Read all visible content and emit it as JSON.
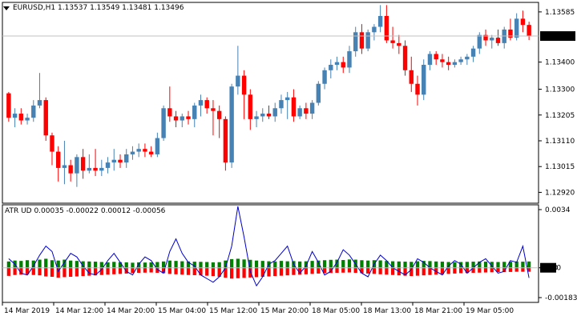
{
  "main_pane": {
    "title": "EURUSD,H1",
    "ohlc": "1.13537 1.13549 1.13481 1.13496",
    "price_ticks": [
      "1.13585",
      "1.13400",
      "1.13300",
      "1.13205",
      "1.13110",
      "1.13015",
      "1.12920"
    ],
    "current_price": "1.13496"
  },
  "indicator_pane": {
    "title": "ATR UD 0.00035 -0.00022 0.00012 -0.00056",
    "ticks": [
      "0.0034",
      "0.00",
      "-0.00183"
    ],
    "zero_tag": "0.00"
  },
  "time_axis": [
    "14 Mar 2019",
    "14 Mar 12:00",
    "14 Mar 20:00",
    "15 Mar 04:00",
    "15 Mar 12:00",
    "15 Mar 20:00",
    "18 Mar 05:00",
    "18 Mar 13:00",
    "18 Mar 21:00",
    "19 Mar 05:00"
  ],
  "colors": {
    "bull": "#4682b4",
    "bear": "#ff0000",
    "hist_up": "#008000",
    "hist_down": "#ff0000",
    "line": "#0000cd",
    "axis_tag_bg": "#000000"
  },
  "chart_data": [
    {
      "type": "candlestick",
      "symbol": "EURUSD",
      "timeframe": "H1",
      "ylim": [
        1.1288,
        1.1362
      ],
      "candles": [
        {
          "o": 1.13285,
          "h": 1.1329,
          "l": 1.1318,
          "c": 1.13195
        },
        {
          "o": 1.13195,
          "h": 1.1323,
          "l": 1.1316,
          "c": 1.1321
        },
        {
          "o": 1.1321,
          "h": 1.1323,
          "l": 1.1317,
          "c": 1.13185
        },
        {
          "o": 1.13185,
          "h": 1.1321,
          "l": 1.1317,
          "c": 1.13195
        },
        {
          "o": 1.13195,
          "h": 1.1326,
          "l": 1.1318,
          "c": 1.1324
        },
        {
          "o": 1.1324,
          "h": 1.1336,
          "l": 1.1323,
          "c": 1.1326
        },
        {
          "o": 1.1326,
          "h": 1.1327,
          "l": 1.1311,
          "c": 1.1313
        },
        {
          "o": 1.1313,
          "h": 1.1314,
          "l": 1.1302,
          "c": 1.1307
        },
        {
          "o": 1.1307,
          "h": 1.1309,
          "l": 1.1296,
          "c": 1.1301
        },
        {
          "o": 1.1301,
          "h": 1.1311,
          "l": 1.1295,
          "c": 1.1302
        },
        {
          "o": 1.1302,
          "h": 1.1304,
          "l": 1.1296,
          "c": 1.1299
        },
        {
          "o": 1.1299,
          "h": 1.1306,
          "l": 1.1294,
          "c": 1.1305
        },
        {
          "o": 1.1305,
          "h": 1.1308,
          "l": 1.1297,
          "c": 1.13
        },
        {
          "o": 1.13,
          "h": 1.1306,
          "l": 1.1299,
          "c": 1.1301
        },
        {
          "o": 1.1301,
          "h": 1.1308,
          "l": 1.1298,
          "c": 1.13
        },
        {
          "o": 1.13,
          "h": 1.1304,
          "l": 1.1298,
          "c": 1.1301
        },
        {
          "o": 1.1301,
          "h": 1.1305,
          "l": 1.1299,
          "c": 1.1303
        },
        {
          "o": 1.1303,
          "h": 1.1308,
          "l": 1.13,
          "c": 1.1304
        },
        {
          "o": 1.1304,
          "h": 1.1306,
          "l": 1.1301,
          "c": 1.1303
        },
        {
          "o": 1.1303,
          "h": 1.1308,
          "l": 1.1301,
          "c": 1.1306
        },
        {
          "o": 1.1306,
          "h": 1.1309,
          "l": 1.1304,
          "c": 1.1307
        },
        {
          "o": 1.1307,
          "h": 1.131,
          "l": 1.1305,
          "c": 1.1308
        },
        {
          "o": 1.1308,
          "h": 1.131,
          "l": 1.1305,
          "c": 1.1307
        },
        {
          "o": 1.1307,
          "h": 1.1309,
          "l": 1.1305,
          "c": 1.1306
        },
        {
          "o": 1.1306,
          "h": 1.1314,
          "l": 1.1305,
          "c": 1.1312
        },
        {
          "o": 1.1312,
          "h": 1.1324,
          "l": 1.1311,
          "c": 1.1323
        },
        {
          "o": 1.1323,
          "h": 1.1331,
          "l": 1.1318,
          "c": 1.132
        },
        {
          "o": 1.132,
          "h": 1.1322,
          "l": 1.1316,
          "c": 1.13185
        },
        {
          "o": 1.13185,
          "h": 1.1321,
          "l": 1.1316,
          "c": 1.132
        },
        {
          "o": 1.132,
          "h": 1.1322,
          "l": 1.1317,
          "c": 1.1319
        },
        {
          "o": 1.1319,
          "h": 1.1325,
          "l": 1.1316,
          "c": 1.1324
        },
        {
          "o": 1.1324,
          "h": 1.1328,
          "l": 1.132,
          "c": 1.1326
        },
        {
          "o": 1.1326,
          "h": 1.1327,
          "l": 1.1321,
          "c": 1.1323
        },
        {
          "o": 1.1323,
          "h": 1.1326,
          "l": 1.1313,
          "c": 1.1322
        },
        {
          "o": 1.1322,
          "h": 1.1324,
          "l": 1.1312,
          "c": 1.1319
        },
        {
          "o": 1.1319,
          "h": 1.132,
          "l": 1.13,
          "c": 1.1303
        },
        {
          "o": 1.1303,
          "h": 1.1332,
          "l": 1.1301,
          "c": 1.1331
        },
        {
          "o": 1.1331,
          "h": 1.1346,
          "l": 1.1328,
          "c": 1.1335
        },
        {
          "o": 1.1335,
          "h": 1.1337,
          "l": 1.1319,
          "c": 1.1328
        },
        {
          "o": 1.1328,
          "h": 1.133,
          "l": 1.1315,
          "c": 1.1319
        },
        {
          "o": 1.1319,
          "h": 1.1322,
          "l": 1.1316,
          "c": 1.132
        },
        {
          "o": 1.132,
          "h": 1.1323,
          "l": 1.1318,
          "c": 1.1321
        },
        {
          "o": 1.1321,
          "h": 1.1324,
          "l": 1.1319,
          "c": 1.132
        },
        {
          "o": 1.132,
          "h": 1.1325,
          "l": 1.1318,
          "c": 1.1323
        },
        {
          "o": 1.1323,
          "h": 1.1328,
          "l": 1.1321,
          "c": 1.1326
        },
        {
          "o": 1.1326,
          "h": 1.1329,
          "l": 1.1319,
          "c": 1.1327
        },
        {
          "o": 1.1327,
          "h": 1.133,
          "l": 1.1318,
          "c": 1.132
        },
        {
          "o": 1.132,
          "h": 1.1324,
          "l": 1.1319,
          "c": 1.1323
        },
        {
          "o": 1.1323,
          "h": 1.1325,
          "l": 1.1319,
          "c": 1.1321
        },
        {
          "o": 1.1321,
          "h": 1.1326,
          "l": 1.1319,
          "c": 1.1325
        },
        {
          "o": 1.1325,
          "h": 1.1333,
          "l": 1.1324,
          "c": 1.1332
        },
        {
          "o": 1.1332,
          "h": 1.1338,
          "l": 1.133,
          "c": 1.1337
        },
        {
          "o": 1.1337,
          "h": 1.1341,
          "l": 1.1334,
          "c": 1.1339
        },
        {
          "o": 1.1339,
          "h": 1.1342,
          "l": 1.1337,
          "c": 1.134
        },
        {
          "o": 1.134,
          "h": 1.1342,
          "l": 1.1336,
          "c": 1.1338
        },
        {
          "o": 1.1338,
          "h": 1.1346,
          "l": 1.1336,
          "c": 1.1344
        },
        {
          "o": 1.1344,
          "h": 1.1353,
          "l": 1.1342,
          "c": 1.1351
        },
        {
          "o": 1.1351,
          "h": 1.1354,
          "l": 1.1343,
          "c": 1.1345
        },
        {
          "o": 1.1345,
          "h": 1.1352,
          "l": 1.1344,
          "c": 1.1351
        },
        {
          "o": 1.1351,
          "h": 1.1354,
          "l": 1.1348,
          "c": 1.1353
        },
        {
          "o": 1.1353,
          "h": 1.1361,
          "l": 1.1351,
          "c": 1.1357
        },
        {
          "o": 1.1357,
          "h": 1.1361,
          "l": 1.1347,
          "c": 1.1348
        },
        {
          "o": 1.1348,
          "h": 1.1353,
          "l": 1.1345,
          "c": 1.1347
        },
        {
          "o": 1.1347,
          "h": 1.135,
          "l": 1.1343,
          "c": 1.1346
        },
        {
          "o": 1.1346,
          "h": 1.1348,
          "l": 1.1335,
          "c": 1.1337
        },
        {
          "o": 1.1337,
          "h": 1.1342,
          "l": 1.1329,
          "c": 1.1332
        },
        {
          "o": 1.1332,
          "h": 1.1335,
          "l": 1.1324,
          "c": 1.1328
        },
        {
          "o": 1.1328,
          "h": 1.1341,
          "l": 1.1326,
          "c": 1.1339
        },
        {
          "o": 1.1339,
          "h": 1.1344,
          "l": 1.1337,
          "c": 1.1343
        },
        {
          "o": 1.1343,
          "h": 1.1344,
          "l": 1.1339,
          "c": 1.1341
        },
        {
          "o": 1.1341,
          "h": 1.1343,
          "l": 1.1338,
          "c": 1.134
        },
        {
          "o": 1.134,
          "h": 1.1342,
          "l": 1.1337,
          "c": 1.1339
        },
        {
          "o": 1.1339,
          "h": 1.1341,
          "l": 1.1338,
          "c": 1.134
        },
        {
          "o": 1.134,
          "h": 1.1342,
          "l": 1.1339,
          "c": 1.1341
        },
        {
          "o": 1.1341,
          "h": 1.1343,
          "l": 1.1339,
          "c": 1.1342
        },
        {
          "o": 1.1342,
          "h": 1.1346,
          "l": 1.134,
          "c": 1.1345
        },
        {
          "o": 1.1345,
          "h": 1.1351,
          "l": 1.1343,
          "c": 1.135
        },
        {
          "o": 1.135,
          "h": 1.1352,
          "l": 1.1346,
          "c": 1.1348
        },
        {
          "o": 1.1348,
          "h": 1.135,
          "l": 1.1345,
          "c": 1.1349
        },
        {
          "o": 1.1349,
          "h": 1.1352,
          "l": 1.1346,
          "c": 1.1347
        },
        {
          "o": 1.1347,
          "h": 1.1353,
          "l": 1.1345,
          "c": 1.1352
        },
        {
          "o": 1.1352,
          "h": 1.1356,
          "l": 1.1348,
          "c": 1.1349
        },
        {
          "o": 1.1349,
          "h": 1.1358,
          "l": 1.1348,
          "c": 1.1356
        },
        {
          "o": 1.1356,
          "h": 1.1359,
          "l": 1.1351,
          "c": 1.13537
        },
        {
          "o": 1.13537,
          "h": 1.13549,
          "l": 1.13481,
          "c": 1.13496
        }
      ]
    },
    {
      "type": "histogram+line",
      "name": "ATR UD",
      "ylim": [
        -0.00183,
        0.0034
      ],
      "up": [
        0.00035,
        0.0004,
        0.00038,
        0.00042,
        0.0004,
        0.00045,
        0.0005,
        0.00042,
        0.0004,
        0.00045,
        0.0004,
        0.00038,
        0.00036,
        0.00035,
        0.00034,
        0.00032,
        0.0003,
        0.00033,
        0.00031,
        0.0003,
        0.00028,
        0.0003,
        0.00029,
        0.0003,
        0.00032,
        0.00035,
        0.0004,
        0.00038,
        0.00036,
        0.00035,
        0.00034,
        0.00033,
        0.00032,
        0.0003,
        0.00031,
        0.0004,
        0.00048,
        0.0005,
        0.00046,
        0.00044,
        0.0004,
        0.00038,
        0.00036,
        0.00035,
        0.00038,
        0.00036,
        0.00037,
        0.00035,
        0.00036,
        0.00038,
        0.0004,
        0.00042,
        0.00044,
        0.00045,
        0.00043,
        0.00046,
        0.00045,
        0.00042,
        0.0004,
        0.00042,
        0.00041,
        0.00038,
        0.00036,
        0.00035,
        0.00034,
        0.00033,
        0.00036,
        0.00038,
        0.00037,
        0.00035,
        0.00034,
        0.00032,
        0.00031,
        0.00032,
        0.00033,
        0.00034,
        0.00035,
        0.00034,
        0.00033,
        0.00032,
        0.00033,
        0.00034,
        0.00035,
        0.00034,
        0.00035
      ],
      "down": [
        -0.00045,
        -0.0004,
        -0.00038,
        -0.00036,
        -0.0004,
        -0.00042,
        -0.00048,
        -0.0005,
        -0.00055,
        -0.00052,
        -0.0005,
        -0.00048,
        -0.00046,
        -0.00044,
        -0.00042,
        -0.0004,
        -0.00038,
        -0.00036,
        -0.00034,
        -0.00032,
        -0.0003,
        -0.00028,
        -0.00027,
        -0.00026,
        -0.00028,
        -0.0003,
        -0.00034,
        -0.00036,
        -0.00038,
        -0.0004,
        -0.00041,
        -0.00042,
        -0.00044,
        -0.00046,
        -0.0005,
        -0.00055,
        -0.0006,
        -0.00058,
        -0.00056,
        -0.00054,
        -0.00052,
        -0.0005,
        -0.00048,
        -0.00046,
        -0.00044,
        -0.00042,
        -0.0004,
        -0.00038,
        -0.00036,
        -0.00034,
        -0.00032,
        -0.0003,
        -0.00029,
        -0.00028,
        -0.00027,
        -0.00026,
        -0.00028,
        -0.0003,
        -0.00032,
        -0.00034,
        -0.00036,
        -0.00038,
        -0.0004,
        -0.00042,
        -0.00044,
        -0.00046,
        -0.00044,
        -0.00042,
        -0.0004,
        -0.00038,
        -0.00036,
        -0.00034,
        -0.00032,
        -0.0003,
        -0.00029,
        -0.00028,
        -0.00027,
        -0.00026,
        -0.00025,
        -0.00024,
        -0.00024,
        -0.00023,
        -0.00022,
        -0.00022,
        -0.00022
      ],
      "line": [
        0.0005,
        0.0002,
        -0.0003,
        -0.0004,
        0.0001,
        0.0007,
        0.0012,
        0.0009,
        -0.0002,
        0.0003,
        0.0008,
        0.0006,
        0.0001,
        -0.0003,
        -0.0004,
        -0.0001,
        0.0004,
        0.0008,
        0.0003,
        -0.0002,
        -0.0004,
        0.0002,
        0.0006,
        0.0004,
        -0.0001,
        -0.0003,
        0.0009,
        0.0016,
        0.0008,
        0.0003,
        0.0001,
        -0.0004,
        -0.0006,
        -0.0008,
        -0.0005,
        0.0,
        0.0012,
        0.0034,
        0.0017,
        -0.0002,
        -0.001,
        -0.0005,
        0.0002,
        0.0004,
        0.0008,
        0.0012,
        0.0002,
        -0.0003,
        0.0001,
        0.0009,
        0.0003,
        -0.0004,
        -0.0002,
        0.0003,
        0.001,
        0.0007,
        0.0002,
        -0.0003,
        -0.0005,
        0.0002,
        0.0007,
        0.0004,
        0.0,
        -0.0002,
        -0.0004,
        -0.0001,
        0.0005,
        0.0003,
        0.0,
        -0.0002,
        -0.0004,
        0.0001,
        0.0004,
        0.0002,
        -0.0003,
        0.0,
        0.0003,
        0.0005,
        0.0001,
        -0.0003,
        -0.0002,
        0.0004,
        0.0003,
        0.0012,
        -0.00056
      ]
    }
  ]
}
